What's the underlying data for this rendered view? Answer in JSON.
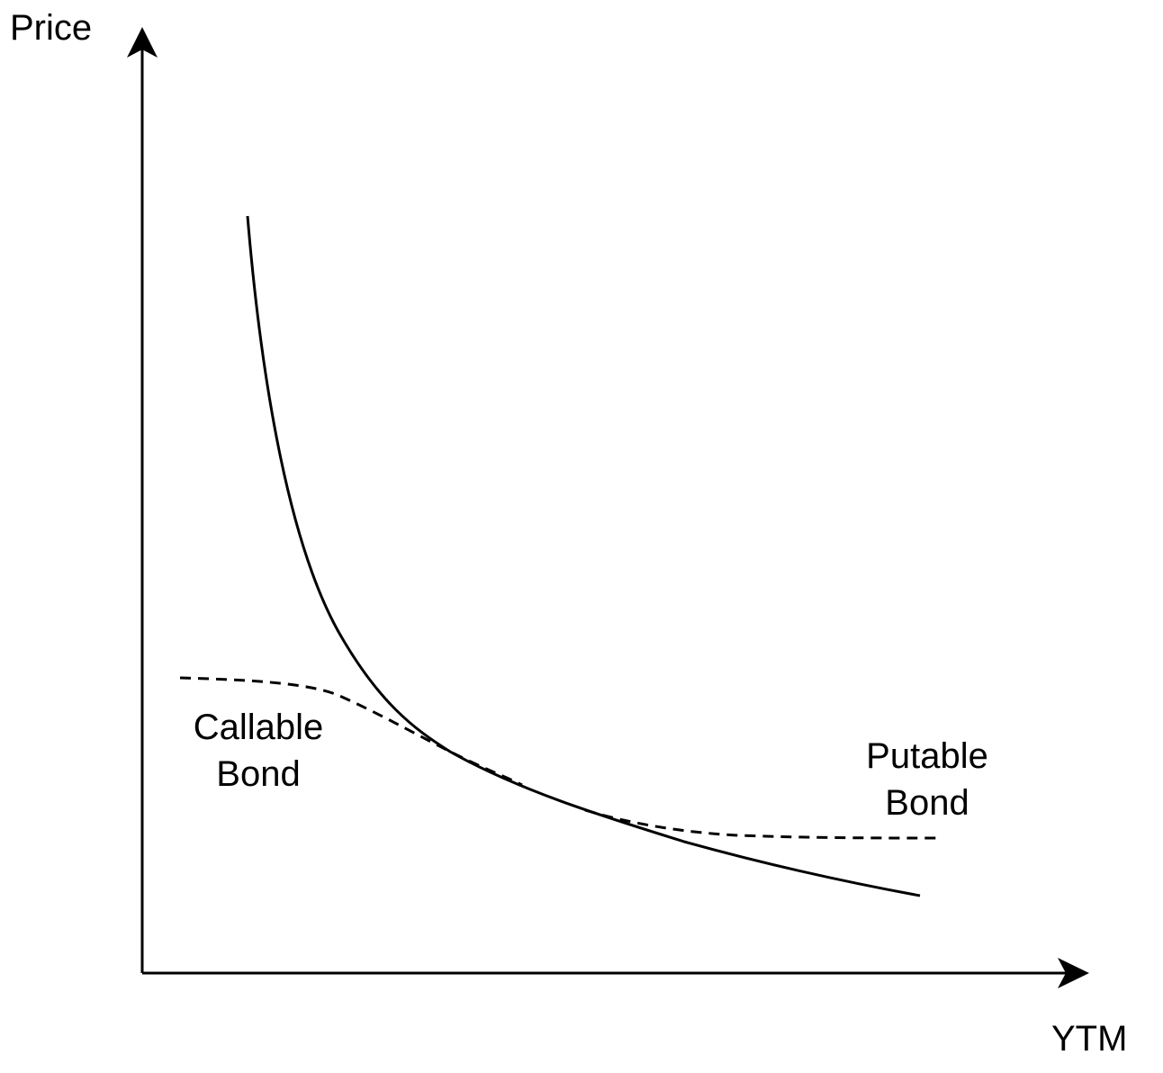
{
  "axes": {
    "y_label": "Price",
    "x_label": "YTM"
  },
  "curves": {
    "option_free": {
      "style": "solid"
    },
    "callable": {
      "style": "dashed",
      "label_line1": "Callable",
      "label_line2": "Bond"
    },
    "putable": {
      "style": "dashed",
      "label_line1": "Putable",
      "label_line2": "Bond"
    }
  },
  "colors": {
    "ink": "#000000",
    "background": "#ffffff"
  }
}
